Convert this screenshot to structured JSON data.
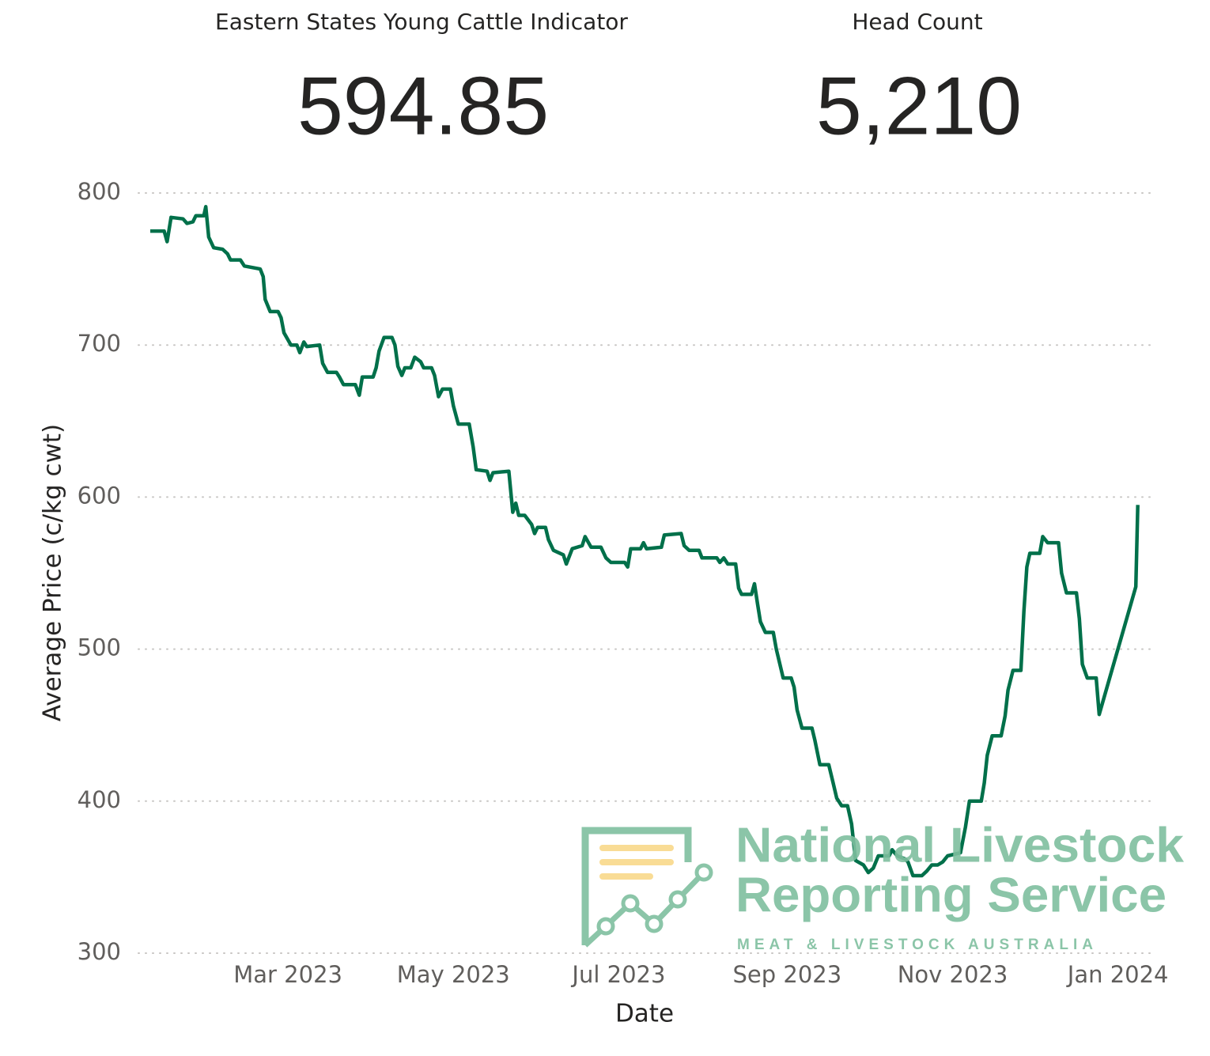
{
  "kpis": [
    {
      "title": "Eastern States Young Cattle Indicator",
      "value": 594.85
    },
    {
      "title": "Head Count",
      "value": {
        "value": 5210,
        "label": "5,210"
      }
    }
  ],
  "logo": {
    "line1": "National Livestock",
    "line2": "Reporting Service",
    "tagline": "MEAT & LIVESTOCK AUSTRALIA"
  },
  "chart_data": {
    "type": "line",
    "x_label": "Date",
    "y_label": "Average Price (c/kg cwt)",
    "color": "#00704a",
    "grid": true,
    "xlim": [
      2023.011,
      2024.037
    ],
    "xticks": [
      {
        "value": 2023.162,
        "label": "Mar 2023"
      },
      {
        "value": 2023.329,
        "label": "May 2023"
      },
      {
        "value": 2023.496,
        "label": "Jul 2023"
      },
      {
        "value": 2023.666,
        "label": "Sep 2023"
      },
      {
        "value": 2023.833,
        "label": "Nov 2023"
      },
      {
        "value": 2024.0,
        "label": "Jan 2024"
      }
    ],
    "ylim": [
      300,
      800
    ],
    "yticks": [
      300,
      400,
      500,
      600,
      700,
      800
    ],
    "x": [
      2023.023,
      2023.029,
      2023.037,
      2023.04,
      2023.044,
      2023.056,
      2023.06,
      2023.066,
      2023.069,
      2023.077,
      2023.079,
      2023.082,
      2023.087,
      2023.096,
      2023.101,
      2023.104,
      2023.114,
      2023.118,
      2023.134,
      2023.137,
      2023.139,
      2023.144,
      2023.152,
      2023.155,
      2023.158,
      2023.165,
      2023.171,
      2023.174,
      2023.178,
      2023.181,
      2023.194,
      2023.197,
      2023.202,
      2023.211,
      2023.214,
      2023.218,
      2023.23,
      2023.234,
      2023.237,
      2023.248,
      2023.251,
      2023.254,
      2023.259,
      2023.267,
      2023.27,
      2023.273,
      2023.277,
      2023.28,
      2023.286,
      2023.29,
      2023.296,
      2023.299,
      2023.307,
      2023.31,
      2023.314,
      2023.318,
      2023.326,
      2023.329,
      2023.334,
      2023.345,
      2023.349,
      2023.352,
      2023.363,
      2023.366,
      2023.369,
      2023.385,
      2023.389,
      2023.392,
      2023.395,
      2023.401,
      2023.408,
      2023.411,
      2023.414,
      2023.422,
      2023.425,
      2023.43,
      2023.44,
      2023.443,
      2023.449,
      2023.459,
      2023.462,
      2023.468,
      2023.478,
      2023.483,
      2023.488,
      2023.502,
      2023.505,
      2023.508,
      2023.518,
      2023.521,
      2023.524,
      2023.539,
      2023.542,
      2023.559,
      2023.562,
      2023.567,
      2023.577,
      2023.58,
      2023.595,
      2023.598,
      2023.602,
      2023.606,
      2023.614,
      2023.617,
      2023.62,
      2023.63,
      2023.633,
      2023.636,
      2023.639,
      2023.644,
      2023.652,
      2023.655,
      2023.662,
      2023.67,
      2023.673,
      2023.676,
      2023.681,
      2023.691,
      2023.694,
      2023.699,
      2023.708,
      2023.712,
      2023.716,
      2023.721,
      2023.727,
      2023.731,
      2023.735,
      2023.743,
      2023.748,
      2023.753,
      2023.758,
      2023.769,
      2023.772,
      2023.777,
      2023.785,
      2023.788,
      2023.793,
      2023.802,
      2023.807,
      2023.812,
      2023.818,
      2023.823,
      2023.828,
      2023.841,
      2023.846,
      2023.85,
      2023.862,
      2023.865,
      2023.868,
      2023.873,
      2023.882,
      2023.886,
      2023.889,
      2023.894,
      2023.902,
      2023.905,
      2023.908,
      2023.911,
      2023.921,
      2023.924,
      2023.929,
      2023.94,
      2023.943,
      2023.948,
      2023.958,
      2023.961,
      2023.964,
      2023.969,
      2023.978,
      2023.981,
      2024.018,
      2024.02
    ],
    "values": [
      775,
      775,
      775,
      768,
      784,
      783,
      780,
      781,
      785,
      785,
      791,
      771,
      764,
      763,
      760,
      756,
      756,
      752,
      750,
      745,
      730,
      722,
      722,
      718,
      708,
      700,
      700,
      695,
      702,
      699,
      700,
      688,
      682,
      682,
      679,
      674,
      674,
      667,
      679,
      679,
      685,
      696,
      705,
      705,
      700,
      686,
      680,
      685,
      685,
      692,
      689,
      685,
      685,
      680,
      666,
      671,
      671,
      660,
      648,
      648,
      633,
      618,
      617,
      611,
      616,
      617,
      590,
      596,
      588,
      588,
      582,
      576,
      580,
      580,
      572,
      565,
      562,
      556,
      566,
      568,
      574,
      567,
      567,
      560,
      557,
      557,
      554,
      566,
      566,
      570,
      566,
      567,
      575,
      576,
      568,
      565,
      565,
      560,
      560,
      557,
      560,
      556,
      556,
      540,
      536,
      536,
      543,
      530,
      518,
      511,
      511,
      500,
      481,
      481,
      475,
      460,
      448,
      448,
      440,
      424,
      424,
      413,
      402,
      397,
      397,
      385,
      361,
      358,
      353,
      356,
      364,
      364,
      368,
      364,
      362,
      360,
      351,
      351,
      354,
      358,
      358,
      360,
      364,
      366,
      383,
      400,
      400,
      412,
      430,
      443,
      443,
      456,
      473,
      486,
      486,
      525,
      554,
      563,
      563,
      574,
      570,
      570,
      550,
      537,
      537,
      520,
      490,
      481,
      481,
      457,
      541,
      594.85
    ]
  }
}
